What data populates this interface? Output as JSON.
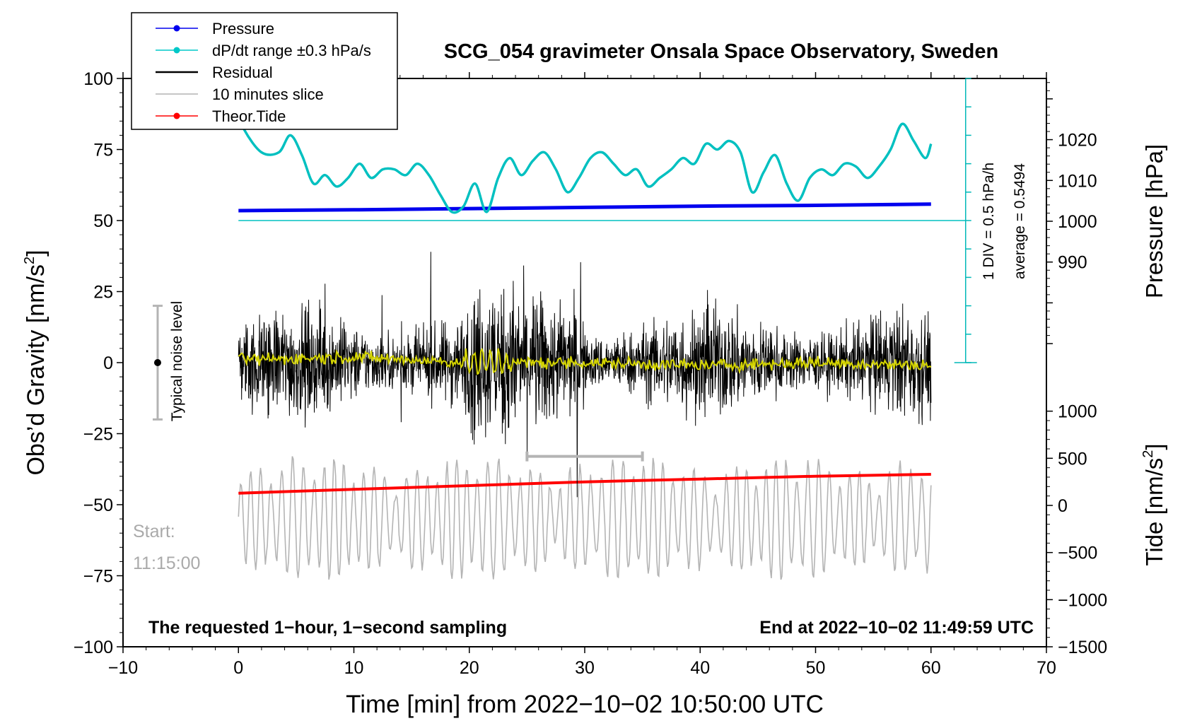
{
  "chart_data": {
    "type": "line",
    "title": "SCG_054 gravimeter Onsala Space Observatory, Sweden",
    "xlabel": "Time [min] from 2022−10−02 10:50:00 UTC",
    "xlim": [
      -10,
      70
    ],
    "xticks": [
      -10,
      0,
      10,
      20,
      30,
      40,
      50,
      60,
      70
    ],
    "xtick_labels": [
      "−10",
      "0",
      "10",
      "20",
      "30",
      "40",
      "50",
      "60",
      "70"
    ],
    "ylabel_left": "Obs’d Gravity [nm/s²]",
    "ylabel_left_main": "Obs’d Gravity [nm/s",
    "ylabel_left_sup": "2",
    "ylabel_left_end": "]",
    "ylim_left": [
      -100,
      100
    ],
    "yticks_left": [
      -100,
      -75,
      -50,
      -25,
      0,
      25,
      50,
      75,
      100
    ],
    "ytick_labels_left": [
      "−100",
      "−75",
      "−50",
      "−25",
      "0",
      "25",
      "50",
      "75",
      "100"
    ],
    "ylabel_pressure": "Pressure [hPa]",
    "ylim_pressure": [
      965,
      1035
    ],
    "yticks_pressure": [
      990,
      1000,
      1010,
      1020
    ],
    "ytick_labels_pressure": [
      "990",
      "1000",
      "1010",
      "1020"
    ],
    "ylabel_tide_main": "Tide [nm/s",
    "ylabel_tide_sup": "2",
    "ylabel_tide_end": "]",
    "ylim_tide": [
      -1500,
      1500
    ],
    "yticks_tide": [
      -1500,
      -1000,
      -500,
      0,
      500,
      1000
    ],
    "ytick_labels_tide": [
      "−1500",
      "−1000",
      "−500",
      "0",
      "500",
      "1000"
    ],
    "legend": {
      "position": "top-left",
      "entries": [
        {
          "label": "Pressure",
          "color": "#0000ee",
          "marker": "dot"
        },
        {
          "label": "dP/dt range ±0.3 hPa/s",
          "color": "#00c8c8",
          "marker": "dot"
        },
        {
          "label": "Residual",
          "color": "#000000",
          "marker": "none"
        },
        {
          "label": "10 minutes slice",
          "color": "#b4b4b4",
          "marker": "none"
        },
        {
          "label": "Theor.Tide",
          "color": "#ff0000",
          "marker": "dot"
        }
      ]
    },
    "series": [
      {
        "name": "Pressure",
        "axis": "pressure",
        "color": "#0000ee",
        "x": [
          0,
          10,
          20,
          30,
          40,
          50,
          60
        ],
        "values": [
          1002.6,
          1002.8,
          1003.1,
          1003.4,
          1003.7,
          1003.9,
          1004.2
        ]
      },
      {
        "name": "dP/dt",
        "axis": "left",
        "color": "#00c0c0",
        "x": [
          0,
          0.5,
          2,
          3.5,
          4.5,
          5.5,
          6.5,
          7.5,
          8.5,
          9.5,
          10.5,
          11.5,
          12.5,
          13.5,
          14.5,
          15.5,
          16.5,
          17.5,
          18.5,
          19.5,
          20.5,
          21.5,
          22.5,
          23.5,
          24.5,
          25.5,
          26.5,
          27.5,
          28.5,
          29.5,
          30.5,
          31.5,
          32.5,
          33.5,
          34.5,
          35.5,
          36.5,
          37.5,
          38.5,
          39.5,
          40.5,
          41.5,
          42.5,
          43.5,
          44.5,
          45.5,
          46.5,
          47.5,
          48.5,
          49.5,
          50.5,
          51.5,
          52.5,
          53.5,
          54.5,
          55.5,
          56.5,
          57.5,
          58.5,
          59.5,
          60
        ],
        "values": [
          89,
          82,
          74,
          74,
          80,
          73,
          63,
          66,
          62,
          65,
          70,
          65,
          68,
          68,
          66,
          70,
          66,
          59,
          53,
          55,
          63,
          53,
          65,
          72,
          66,
          71,
          74,
          68,
          60,
          65,
          72,
          74,
          70,
          66,
          68,
          62,
          65,
          68,
          72,
          70,
          77,
          75,
          78,
          74,
          60,
          67,
          73,
          63,
          57,
          65,
          68,
          66,
          70,
          69,
          65,
          69,
          75,
          84,
          78,
          72,
          77
        ]
      },
      {
        "name": "dP/dt range",
        "axis": "left",
        "color": "#00c0c0",
        "x": [
          0,
          63
        ],
        "values": [
          50,
          50
        ]
      },
      {
        "name": "Residual",
        "axis": "left",
        "color": "#000000",
        "x": [
          0,
          60
        ],
        "values": [
          0,
          0
        ]
      },
      {
        "name": "Residual smoothed",
        "axis": "left",
        "color": "#d4d400",
        "x": [
          0,
          10,
          20,
          30,
          40,
          50,
          60
        ],
        "values": [
          1,
          2,
          0,
          0,
          -1,
          0,
          -1
        ]
      },
      {
        "name": "10 minutes slice",
        "axis": "left",
        "color": "#b4b4b4",
        "x": [
          0,
          60
        ],
        "values": [
          -55,
          -55
        ]
      },
      {
        "name": "Theor.Tide",
        "axis": "tide",
        "color": "#ff0000",
        "x": [
          0,
          10,
          20,
          30,
          40,
          50,
          60
        ],
        "values": [
          130,
          170,
          210,
          250,
          280,
          310,
          330
        ]
      }
    ],
    "dpdt_scale": {
      "label": "1 DIV = 0.5 hPa/h",
      "average_label": "average = 0.5494"
    },
    "noise_bar": {
      "label": "Typical noise level",
      "center": 0,
      "half_range": 20,
      "x": -7
    },
    "slice_marker": {
      "from": 25,
      "to": 35,
      "y": -33
    },
    "annotations": {
      "start_label": "Start:",
      "start_time": "11:15:00",
      "bottom_left": "The requested 1−hour, 1−second sampling",
      "bottom_right": "End at 2022−10−02 11:49:59 UTC"
    }
  }
}
